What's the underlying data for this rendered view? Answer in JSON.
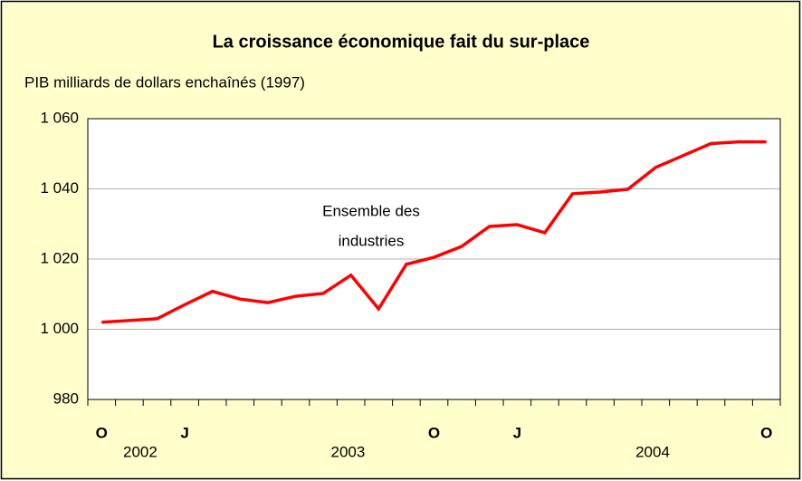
{
  "chart_data": {
    "type": "line",
    "title": "La croissance économique fait du sur-place",
    "subtitle": "PIB milliards de dollars enchaînés (1997)",
    "annotation": [
      "Ensemble des",
      "industries"
    ],
    "categories": [
      "O",
      null,
      null,
      "J",
      null,
      null,
      null,
      null,
      null,
      null,
      null,
      null,
      "O",
      null,
      null,
      "J",
      null,
      null,
      null,
      null,
      null,
      null,
      null,
      null,
      "O"
    ],
    "years": [
      "2002",
      "2003",
      "2004"
    ],
    "series": [
      {
        "name": "Ensemble des industries",
        "color": "#ff0000",
        "values": [
          1002,
          1002.5,
          1003,
          1007,
          1010.8,
          1008.6,
          1007.6,
          1009.4,
          1010.2,
          1015.4,
          1005.8,
          1018.5,
          1020.5,
          1023.6,
          1029.3,
          1029.8,
          1027.5,
          1038.6,
          1039.1,
          1039.9,
          1046.1,
          1049.5,
          1052.9,
          1053.4,
          1053.4
        ]
      }
    ],
    "ylim": [
      980,
      1060
    ],
    "yticks": [
      980,
      {
        "value": 1000,
        "label": "1 000"
      },
      {
        "value": 1020,
        "label": "1 020"
      },
      {
        "value": 1040,
        "label": "1 040"
      },
      {
        "value": 1060,
        "label": "1 060"
      }
    ],
    "grid": true
  }
}
